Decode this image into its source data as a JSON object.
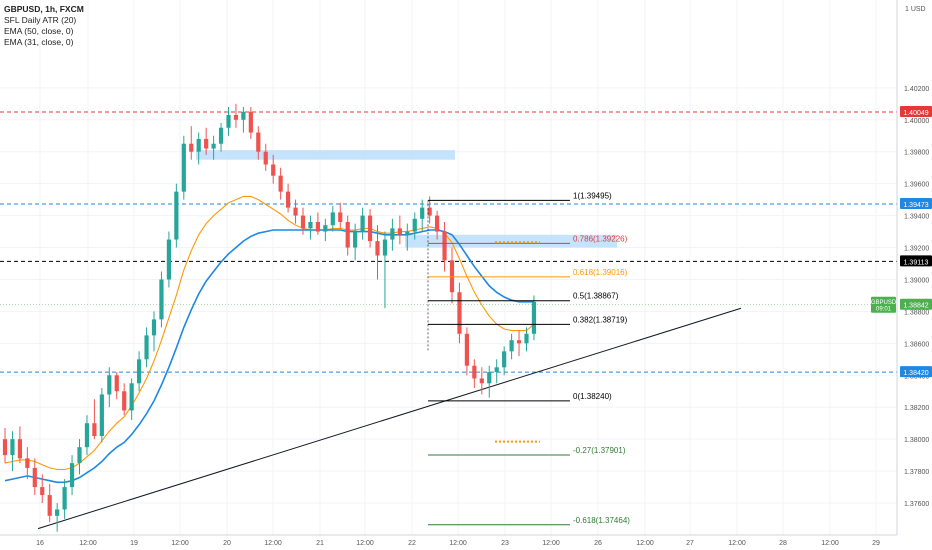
{
  "legend": {
    "symbol": "GBPUSD, 1h, FXCM",
    "ind1": "SFL Daily ATR (20)",
    "ind2": "EMA (50, close, 0)",
    "ind3": "EMA (31, close, 0)"
  },
  "colors": {
    "bull": "#26a69a",
    "bear": "#ef5350",
    "ema50": "#1e88e5",
    "ema31": "#ff9800",
    "red_line": "#e53935",
    "blue_line": "#1e88e5",
    "black_line": "#000000",
    "zone": "#bbdefb",
    "fib_black": "#000000",
    "fib_red": "#e53935",
    "fib_orange": "#ff9800",
    "fib_green": "#2e7d32",
    "grid": "#f0f3fa",
    "price_tag": "#4caf50"
  },
  "chart_data": {
    "type": "candlestick",
    "symbol": "GBPUSD",
    "timeframe": "1h",
    "y_unit_label": "USD",
    "ylim": [
      1.374,
      1.4075
    ],
    "y_ticks": [
      "1.40200",
      "1.40000",
      "1.39800",
      "1.39600",
      "1.39400",
      "1.39200",
      "1.39000",
      "1.38800",
      "1.38600",
      "1.38400",
      "1.38200",
      "1.38000",
      "1.37800",
      "1.37600"
    ],
    "x_ticks": [
      "16",
      "12:00",
      "19",
      "12:00",
      "20",
      "12:00",
      "21",
      "12:00",
      "22",
      "12:00",
      "23",
      "12:00",
      "26",
      "12:00",
      "27",
      "12:00",
      "28",
      "12:00",
      "29"
    ],
    "candles": [
      [
        1.38,
        1.3807,
        1.3785,
        1.379
      ],
      [
        1.379,
        1.3805,
        1.378,
        1.38
      ],
      [
        1.38,
        1.3808,
        1.3785,
        1.3788
      ],
      [
        1.3788,
        1.3795,
        1.3775,
        1.3782
      ],
      [
        1.3782,
        1.3788,
        1.3765,
        1.377
      ],
      [
        1.377,
        1.3778,
        1.376,
        1.3765
      ],
      [
        1.3765,
        1.3772,
        1.3748,
        1.3752
      ],
      [
        1.3752,
        1.376,
        1.3742,
        1.3756
      ],
      [
        1.3756,
        1.3775,
        1.375,
        1.377
      ],
      [
        1.377,
        1.379,
        1.3765,
        1.3785
      ],
      [
        1.3785,
        1.38,
        1.3778,
        1.3795
      ],
      [
        1.3795,
        1.3815,
        1.379,
        1.381
      ],
      [
        1.381,
        1.3825,
        1.38,
        1.3802
      ],
      [
        1.3802,
        1.3832,
        1.3798,
        1.3828
      ],
      [
        1.3828,
        1.3845,
        1.382,
        1.384
      ],
      [
        1.384,
        1.3842,
        1.3825,
        1.383
      ],
      [
        1.383,
        1.3835,
        1.3815,
        1.3818
      ],
      [
        1.3818,
        1.3838,
        1.3812,
        1.3835
      ],
      [
        1.3835,
        1.3855,
        1.383,
        1.385
      ],
      [
        1.385,
        1.387,
        1.3845,
        1.3865
      ],
      [
        1.3865,
        1.388,
        1.3855,
        1.3875
      ],
      [
        1.3875,
        1.3905,
        1.387,
        1.39
      ],
      [
        1.39,
        1.393,
        1.3895,
        1.3925
      ],
      [
        1.3925,
        1.396,
        1.392,
        1.3955
      ],
      [
        1.3955,
        1.399,
        1.395,
        1.3985
      ],
      [
        1.3985,
        1.3996,
        1.3975,
        1.398
      ],
      [
        1.398,
        1.3992,
        1.3972,
        1.3988
      ],
      [
        1.3988,
        1.3995,
        1.3978,
        1.3982
      ],
      [
        1.3982,
        1.399,
        1.3975,
        1.3985
      ],
      [
        1.3985,
        1.3998,
        1.398,
        1.3995
      ],
      [
        1.3995,
        1.4008,
        1.399,
        1.4003
      ],
      [
        1.4003,
        1.401,
        1.3995,
        1.4
      ],
      [
        1.4,
        1.4008,
        1.3992,
        1.4005
      ],
      [
        1.4005,
        1.4008,
        1.3988,
        1.3992
      ],
      [
        1.3992,
        1.3996,
        1.3975,
        1.398
      ],
      [
        1.398,
        1.3985,
        1.3968,
        1.3972
      ],
      [
        1.3972,
        1.3978,
        1.396,
        1.3965
      ],
      [
        1.3965,
        1.397,
        1.395,
        1.3955
      ],
      [
        1.3955,
        1.396,
        1.3942,
        1.3945
      ],
      [
        1.3945,
        1.395,
        1.3935,
        1.394
      ],
      [
        1.394,
        1.3945,
        1.3928,
        1.3932
      ],
      [
        1.3932,
        1.394,
        1.3925,
        1.3936
      ],
      [
        1.3936,
        1.3942,
        1.3928,
        1.393
      ],
      [
        1.393,
        1.3938,
        1.3924,
        1.3934
      ],
      [
        1.3934,
        1.3946,
        1.393,
        1.3942
      ],
      [
        1.3942,
        1.3948,
        1.3932,
        1.3936
      ],
      [
        1.3936,
        1.394,
        1.3915,
        1.392
      ],
      [
        1.392,
        1.3935,
        1.3912,
        1.393
      ],
      [
        1.393,
        1.3945,
        1.3925,
        1.394
      ],
      [
        1.394,
        1.3944,
        1.392,
        1.3924
      ],
      [
        1.3924,
        1.3934,
        1.39,
        1.3915
      ],
      [
        1.3915,
        1.393,
        1.3882,
        1.3925
      ],
      [
        1.3925,
        1.3938,
        1.3918,
        1.3932
      ],
      [
        1.3932,
        1.394,
        1.3922,
        1.3928
      ],
      [
        1.3928,
        1.3935,
        1.3918,
        1.393
      ],
      [
        1.393,
        1.3942,
        1.3925,
        1.3938
      ],
      [
        1.3938,
        1.395,
        1.393,
        1.3945
      ],
      [
        1.3945,
        1.3952,
        1.3935,
        1.394
      ],
      [
        1.394,
        1.3943,
        1.3925,
        1.393
      ],
      [
        1.393,
        1.3936,
        1.3905,
        1.3912
      ],
      [
        1.3912,
        1.392,
        1.3885,
        1.3892
      ],
      [
        1.3892,
        1.3898,
        1.386,
        1.3866
      ],
      [
        1.3866,
        1.387,
        1.384,
        1.3846
      ],
      [
        1.3846,
        1.385,
        1.3832,
        1.3838
      ],
      [
        1.3838,
        1.3845,
        1.3828,
        1.3835
      ],
      [
        1.3835,
        1.3846,
        1.3826,
        1.3842
      ],
      [
        1.3842,
        1.385,
        1.3835,
        1.3845
      ],
      [
        1.3845,
        1.3858,
        1.384,
        1.3855
      ],
      [
        1.3855,
        1.3866,
        1.385,
        1.3862
      ],
      [
        1.3862,
        1.3868,
        1.3852,
        1.386
      ],
      [
        1.386,
        1.387,
        1.3855,
        1.3866
      ],
      [
        1.3866,
        1.389,
        1.3862,
        1.3886
      ]
    ],
    "ema50": [
      1.3774,
      1.3775,
      1.3776,
      1.3777,
      1.3776,
      1.3775,
      1.3774,
      1.3773,
      1.3773,
      1.3774,
      1.3776,
      1.3779,
      1.3782,
      1.3786,
      1.3791,
      1.3795,
      1.3798,
      1.3803,
      1.3809,
      1.3816,
      1.3824,
      1.3834,
      1.3845,
      1.3857,
      1.387,
      1.3881,
      1.3891,
      1.3899,
      1.3905,
      1.3911,
      1.3916,
      1.392,
      1.3924,
      1.3927,
      1.3929,
      1.393,
      1.3931,
      1.3931,
      1.3931,
      1.3931,
      1.3931,
      1.3931,
      1.3931,
      1.3931,
      1.3931,
      1.3931,
      1.393,
      1.393,
      1.393,
      1.393,
      1.3929,
      1.3928,
      1.3928,
      1.3928,
      1.3928,
      1.3929,
      1.393,
      1.3931,
      1.3931,
      1.393,
      1.3928,
      1.3922,
      1.3915,
      1.3908,
      1.3902,
      1.3896,
      1.3892,
      1.3889,
      1.3887,
      1.3886,
      1.3886,
      1.3886
    ],
    "ema31": [
      1.3785,
      1.3786,
      1.3787,
      1.3787,
      1.3786,
      1.3784,
      1.3782,
      1.3781,
      1.3781,
      1.3782,
      1.3785,
      1.3789,
      1.3793,
      1.3799,
      1.3805,
      1.381,
      1.3814,
      1.3821,
      1.3829,
      1.3838,
      1.3849,
      1.3862,
      1.3876,
      1.389,
      1.3906,
      1.3918,
      1.3928,
      1.3935,
      1.394,
      1.3944,
      1.3948,
      1.395,
      1.3952,
      1.3952,
      1.395,
      1.3947,
      1.3944,
      1.3941,
      1.3937,
      1.3934,
      1.3932,
      1.3931,
      1.3931,
      1.3931,
      1.3932,
      1.3932,
      1.3931,
      1.3931,
      1.3932,
      1.3932,
      1.393,
      1.3929,
      1.3929,
      1.393,
      1.393,
      1.3931,
      1.3932,
      1.3933,
      1.3932,
      1.3929,
      1.3923,
      1.3913,
      1.3902,
      1.3892,
      1.3884,
      1.3877,
      1.3872,
      1.3869,
      1.3868,
      1.3868,
      1.3868,
      1.3872
    ],
    "horizontal_lines": [
      {
        "price": 1.40049,
        "label": "1.40049",
        "style": "dashed",
        "color": "#e53935"
      },
      {
        "price": 1.39473,
        "label": "1.39473",
        "style": "dashed",
        "color": "#1e88e5"
      },
      {
        "price": 1.39113,
        "label": "1.39113",
        "style": "dashed",
        "color": "#000000"
      },
      {
        "price": 1.3842,
        "label": "1.38420",
        "style": "dashed",
        "color": "#1e88e5"
      }
    ],
    "current_price": {
      "symbol": "GBPUSD",
      "price": "1.38842",
      "countdown": "09:01"
    },
    "zones": [
      {
        "from": 1.3975,
        "to": 1.3981
      },
      {
        "from": 1.392,
        "to": 1.3928
      }
    ],
    "fibonacci": [
      {
        "level": "1",
        "price": 1.39495,
        "label": "1(1.39495)",
        "color": "#000000"
      },
      {
        "level": "0.786",
        "price": 1.39226,
        "label": "0.786(1.39226)",
        "color": "#e53935"
      },
      {
        "level": "0.618",
        "price": 1.39016,
        "label": "0.618(1.39016)",
        "color": "#ff9800"
      },
      {
        "level": "0.5",
        "price": 1.38867,
        "label": "0.5(1.38867)",
        "color": "#000000"
      },
      {
        "level": "0.382",
        "price": 1.38719,
        "label": "0.382(1.38719)",
        "color": "#000000"
      },
      {
        "level": "0",
        "price": 1.3824,
        "label": "0(1.38240)",
        "color": "#000000"
      },
      {
        "level": "-0.27",
        "price": 1.37901,
        "label": "-0.27(1.37901)",
        "color": "#2e7d32"
      },
      {
        "level": "-0.618",
        "price": 1.37464,
        "label": "-0.618(1.37464)",
        "color": "#2e7d32"
      }
    ],
    "dotted_markers": [
      1.39233,
      1.37985
    ],
    "trendline": {
      "from": [
        0,
        1.3744
      ],
      "to": [
        104,
        1.38895
      ]
    }
  }
}
